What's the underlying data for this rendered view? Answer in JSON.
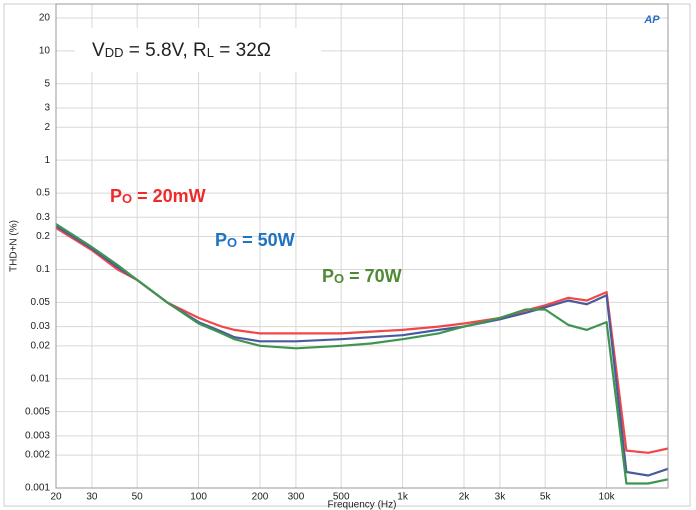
{
  "chart_data": {
    "type": "line",
    "xlabel": "Frequency (Hz)",
    "ylabel": "THD+N (%)",
    "logo": "AP",
    "condition": {
      "p1": "V",
      "s1": "DD",
      "p2": " = 5.8V, R",
      "s2": "L",
      "p3": " = 32Ω"
    },
    "annotations": [
      {
        "main": "P",
        "sub": "O",
        "rest": " = 20mW",
        "color": "#ee2b2b"
      },
      {
        "main": "P",
        "sub": "O",
        "rest": " = 50W",
        "color": "#1f73c0"
      },
      {
        "main": "P",
        "sub": "O",
        "rest": " = 70W",
        "color": "#4e8a34"
      }
    ],
    "x": [
      20,
      30,
      40,
      50,
      70,
      100,
      130,
      150,
      200,
      300,
      500,
      700,
      1000,
      1500,
      2000,
      3000,
      4000,
      5000,
      6500,
      8000,
      10000,
      12500,
      16000,
      20000
    ],
    "series": [
      {
        "name": "20mW",
        "color": "#f04848",
        "values": [
          0.24,
          0.15,
          0.1,
          0.08,
          0.05,
          0.036,
          0.03,
          0.028,
          0.026,
          0.026,
          0.026,
          0.027,
          0.028,
          0.03,
          0.032,
          0.036,
          0.042,
          0.047,
          0.055,
          0.052,
          0.062,
          0.0022,
          0.0021,
          0.0023
        ]
      },
      {
        "name": "50W",
        "color": "#4a5a9e",
        "values": [
          0.25,
          0.155,
          0.105,
          0.08,
          0.05,
          0.033,
          0.027,
          0.024,
          0.022,
          0.022,
          0.023,
          0.024,
          0.025,
          0.028,
          0.03,
          0.035,
          0.04,
          0.045,
          0.052,
          0.048,
          0.058,
          0.0014,
          0.0013,
          0.0015
        ]
      },
      {
        "name": "70W",
        "color": "#3f9550",
        "values": [
          0.26,
          0.16,
          0.11,
          0.08,
          0.05,
          0.032,
          0.026,
          0.023,
          0.02,
          0.019,
          0.02,
          0.021,
          0.023,
          0.026,
          0.03,
          0.036,
          0.043,
          0.043,
          0.031,
          0.028,
          0.033,
          0.0011,
          0.0011,
          0.0012
        ]
      }
    ],
    "xlim": [
      20,
      20000
    ],
    "ylim": [
      0.001,
      20
    ],
    "xlog": true,
    "ylog": true,
    "grid": true,
    "xticks": [
      20,
      30,
      50,
      100,
      200,
      300,
      500,
      {
        "value": 1000,
        "label": "1k"
      },
      {
        "value": 2000,
        "label": "2k"
      },
      {
        "value": 3000,
        "label": "3k"
      },
      {
        "value": 5000,
        "label": "5k"
      },
      {
        "value": 10000,
        "label": "10k"
      }
    ],
    "yticks": [
      20,
      10,
      5,
      3,
      2,
      1,
      0.5,
      0.3,
      0.2,
      0.1,
      0.05,
      0.03,
      0.02,
      0.01,
      0.005,
      0.003,
      0.002,
      0.001
    ]
  }
}
